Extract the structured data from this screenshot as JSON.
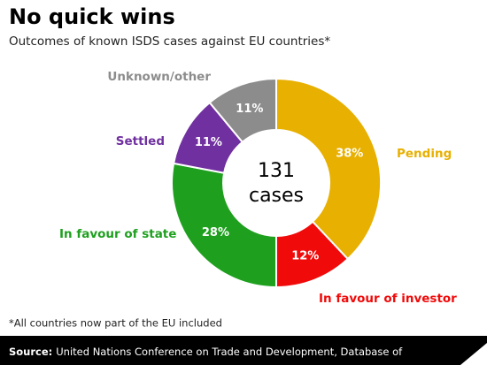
{
  "chart_data": {
    "type": "donut",
    "title": "No quick wins",
    "subtitle": "Outcomes of known ISDS cases against EU countries*",
    "categories": [
      "Pending",
      "In favour of investor",
      "In favour of state",
      "Settled",
      "Unknown/other"
    ],
    "values": [
      38,
      12,
      28,
      11,
      11
    ],
    "value_labels": [
      "38%",
      "12%",
      "28%",
      "11%",
      "11%"
    ],
    "colors": [
      "#e8b000",
      "#f00a0a",
      "#1ea01e",
      "#7030a0",
      "#8c8c8c"
    ],
    "center_text": [
      "131",
      "cases"
    ],
    "footnote": "*All countries now part of the EU included",
    "source_label": "Source:",
    "source": "United Nations Conference on Trade and Development, Database of"
  }
}
